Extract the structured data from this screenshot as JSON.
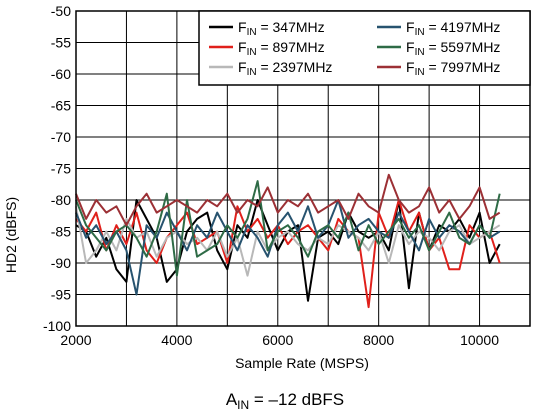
{
  "chart_data": {
    "type": "line",
    "xlabel": "Sample Rate (MSPS)",
    "ylabel": "HD2 (dBFS)",
    "xlim": [
      2000,
      11000
    ],
    "ylim": [
      -100,
      -50
    ],
    "xticks": [
      2000,
      4000,
      6000,
      8000,
      10000
    ],
    "yticks": [
      -50,
      -55,
      -60,
      -65,
      -70,
      -75,
      -80,
      -85,
      -90,
      -95,
      -100
    ],
    "grid": true,
    "legend_position": "top-right",
    "caption_parts": {
      "prefix": "A",
      "sub": "IN",
      "suffix": " = –12 dBFS"
    },
    "series": [
      {
        "name_main": "F",
        "name_sub": "IN",
        "name_rest": " = 347MHz",
        "color": "#000000",
        "x": [
          2000,
          2200,
          2400,
          2600,
          2800,
          3000,
          3200,
          3400,
          3600,
          3800,
          4000,
          4200,
          4400,
          4600,
          4800,
          5000,
          5200,
          5400,
          5600,
          5800,
          6000,
          6200,
          6400,
          6600,
          6800,
          7000,
          7200,
          7400,
          7600,
          7800,
          8000,
          8200,
          8400,
          8600,
          8800,
          9000,
          9200,
          9400,
          9600,
          9800,
          10000,
          10200,
          10400
        ],
        "y": [
          -84,
          -85,
          -89,
          -86,
          -91,
          -93,
          -80,
          -83,
          -86,
          -93,
          -91,
          -85,
          -83,
          -82,
          -88,
          -91,
          -84,
          -86,
          -80,
          -84,
          -88,
          -85,
          -84,
          -96,
          -86,
          -85,
          -87,
          -82,
          -85,
          -86,
          -85,
          -88,
          -80,
          -94,
          -82,
          -88,
          -84,
          -85,
          -83,
          -86,
          -82,
          -90,
          -87
        ]
      },
      {
        "name_main": "F",
        "name_sub": "IN",
        "name_rest": " = 897MHz",
        "color": "#e0201b",
        "x": [
          2000,
          2200,
          2400,
          2600,
          2800,
          3000,
          3200,
          3400,
          3600,
          3800,
          4000,
          4200,
          4400,
          4600,
          4800,
          5000,
          5200,
          5400,
          5600,
          5800,
          6000,
          6200,
          6400,
          6600,
          6800,
          7000,
          7200,
          7400,
          7600,
          7800,
          8000,
          8200,
          8400,
          8600,
          8800,
          9000,
          9200,
          9400,
          9600,
          9800,
          10000,
          10200,
          10400
        ],
        "y": [
          -83,
          -85,
          -82,
          -88,
          -84,
          -87,
          -82,
          -88,
          -90,
          -86,
          -84,
          -82,
          -87,
          -86,
          -85,
          -90,
          -81,
          -85,
          -83,
          -86,
          -84,
          -87,
          -85,
          -84,
          -86,
          -88,
          -83,
          -85,
          -86,
          -97,
          -82,
          -86,
          -80,
          -85,
          -82,
          -88,
          -86,
          -91,
          -91,
          -84,
          -86,
          -85,
          -90
        ]
      },
      {
        "name_main": "F",
        "name_sub": "IN",
        "name_rest": " = 2397MHz",
        "color": "#b8b8b8",
        "x": [
          2000,
          2200,
          2400,
          2600,
          2800,
          3000,
          3200,
          3400,
          3600,
          3800,
          4000,
          4200,
          4400,
          4600,
          4800,
          5000,
          5200,
          5400,
          5600,
          5800,
          6000,
          6200,
          6400,
          6600,
          6800,
          7000,
          7200,
          7400,
          7600,
          7800,
          8000,
          8200,
          8400,
          8600,
          8800,
          9000,
          9200,
          9400,
          9600,
          9800,
          10000,
          10200,
          10400
        ],
        "y": [
          -81,
          -90,
          -88,
          -85,
          -88,
          -83,
          -86,
          -85,
          -89,
          -86,
          -85,
          -87,
          -86,
          -88,
          -85,
          -89,
          -86,
          -92,
          -85,
          -88,
          -86,
          -85,
          -87,
          -88,
          -86,
          -87,
          -84,
          -85,
          -86,
          -88,
          -85,
          -90,
          -84,
          -87,
          -85,
          -86,
          -88,
          -85,
          -84,
          -87,
          -86,
          -85,
          -84
        ]
      },
      {
        "name_main": "F",
        "name_sub": "IN",
        "name_rest": " = 4197MHz",
        "color": "#27536f",
        "x": [
          2000,
          2200,
          2400,
          2600,
          2800,
          3000,
          3200,
          3400,
          3600,
          3800,
          4000,
          4200,
          4400,
          4600,
          4800,
          5000,
          5200,
          5400,
          5600,
          5800,
          6000,
          6200,
          6400,
          6600,
          6800,
          7000,
          7200,
          7400,
          7600,
          7800,
          8000,
          8200,
          8400,
          8600,
          8800,
          9000,
          9200,
          9400,
          9600,
          9800,
          10000,
          10200,
          10400
        ],
        "y": [
          -82,
          -86,
          -84,
          -87,
          -85,
          -88,
          -95,
          -84,
          -86,
          -82,
          -85,
          -88,
          -84,
          -86,
          -82,
          -85,
          -88,
          -84,
          -86,
          -89,
          -84,
          -82,
          -85,
          -81,
          -86,
          -84,
          -80,
          -86,
          -84,
          -83,
          -85,
          -86,
          -82,
          -85,
          -88,
          -83,
          -86,
          -84,
          -85,
          -87,
          -84,
          -86,
          -85
        ]
      },
      {
        "name_main": "F",
        "name_sub": "IN",
        "name_rest": " = 5597MHz",
        "color": "#2e6b46",
        "x": [
          2000,
          2200,
          2400,
          2600,
          2800,
          3000,
          3200,
          3400,
          3600,
          3800,
          4000,
          4200,
          4400,
          4600,
          4800,
          5000,
          5200,
          5400,
          5600,
          5800,
          6000,
          6200,
          6400,
          6600,
          6800,
          7000,
          7200,
          7400,
          7600,
          7800,
          8000,
          8200,
          8400,
          8600,
          8800,
          9000,
          9200,
          9400,
          9600,
          9800,
          10000,
          10200,
          10400
        ],
        "y": [
          -80,
          -84,
          -86,
          -88,
          -85,
          -84,
          -86,
          -89,
          -85,
          -79,
          -92,
          -80,
          -89,
          -88,
          -87,
          -84,
          -86,
          -83,
          -77,
          -88,
          -85,
          -84,
          -86,
          -89,
          -85,
          -84,
          -86,
          -82,
          -88,
          -84,
          -87,
          -85,
          -83,
          -86,
          -84,
          -88,
          -85,
          -82,
          -86,
          -87,
          -84,
          -86,
          -79
        ]
      },
      {
        "name_main": "F",
        "name_sub": "IN",
        "name_rest": " = 7997MHz",
        "color": "#9c3035",
        "x": [
          2000,
          2200,
          2400,
          2600,
          2800,
          3000,
          3200,
          3400,
          3600,
          3800,
          4000,
          4200,
          4400,
          4600,
          4800,
          5000,
          5200,
          5400,
          5600,
          5800,
          6000,
          6200,
          6400,
          6600,
          6800,
          7000,
          7200,
          7400,
          7600,
          7800,
          8000,
          8200,
          8400,
          8600,
          8800,
          9000,
          9200,
          9400,
          9600,
          9800,
          10000,
          10200,
          10400
        ],
        "y": [
          -79,
          -83,
          -80,
          -82,
          -81,
          -84,
          -81,
          -79,
          -82,
          -81,
          -80,
          -81,
          -82,
          -80,
          -81,
          -79,
          -82,
          -80,
          -81,
          -78,
          -82,
          -80,
          -81,
          -79,
          -82,
          -81,
          -80,
          -83,
          -79,
          -81,
          -82,
          -76,
          -80,
          -82,
          -81,
          -78,
          -82,
          -80,
          -83,
          -81,
          -78,
          -83,
          -82
        ]
      }
    ]
  }
}
